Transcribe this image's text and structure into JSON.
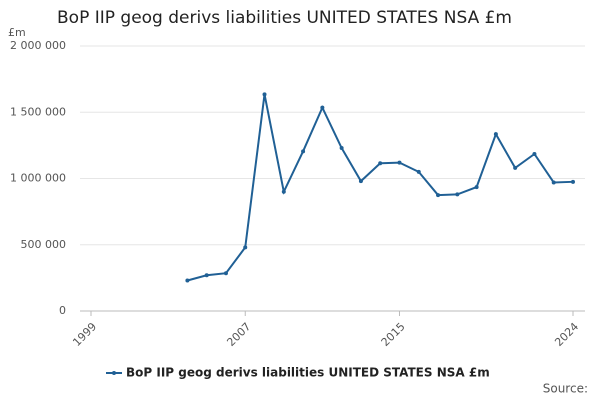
{
  "chart_data": {
    "type": "line",
    "title": "BoP IIP geog derivs liabilities UNITED STATES NSA £m",
    "y_unit_label": "£m",
    "source_label": "Source:",
    "x": [
      2004,
      2005,
      2006,
      2007,
      2008,
      2009,
      2010,
      2011,
      2012,
      2013,
      2014,
      2015,
      2016,
      2017,
      2018,
      2019,
      2020,
      2021,
      2022,
      2023,
      2024
    ],
    "series": [
      {
        "name": "BoP IIP geog derivs liabilities UNITED STATES NSA £m",
        "color": "#206095",
        "values": [
          230000,
          270000,
          285000,
          480000,
          1635000,
          900000,
          1205000,
          1535000,
          1230000,
          980000,
          1115000,
          1120000,
          1050000,
          875000,
          880000,
          935000,
          1335000,
          1080000,
          1185000,
          970000,
          975000
        ]
      }
    ],
    "xlim": [
      1999,
      2024
    ],
    "xticks": [
      1999,
      2007,
      2015,
      2024
    ],
    "ylim": [
      0,
      2000000
    ],
    "yticks": [
      0,
      {
        "value": 500000,
        "label": "500 000"
      },
      {
        "value": 1000000,
        "label": "1 000 000"
      },
      {
        "value": 1500000,
        "label": "1 500 000"
      },
      {
        "value": 2000000,
        "label": "2 000 000"
      }
    ],
    "grid": true
  }
}
